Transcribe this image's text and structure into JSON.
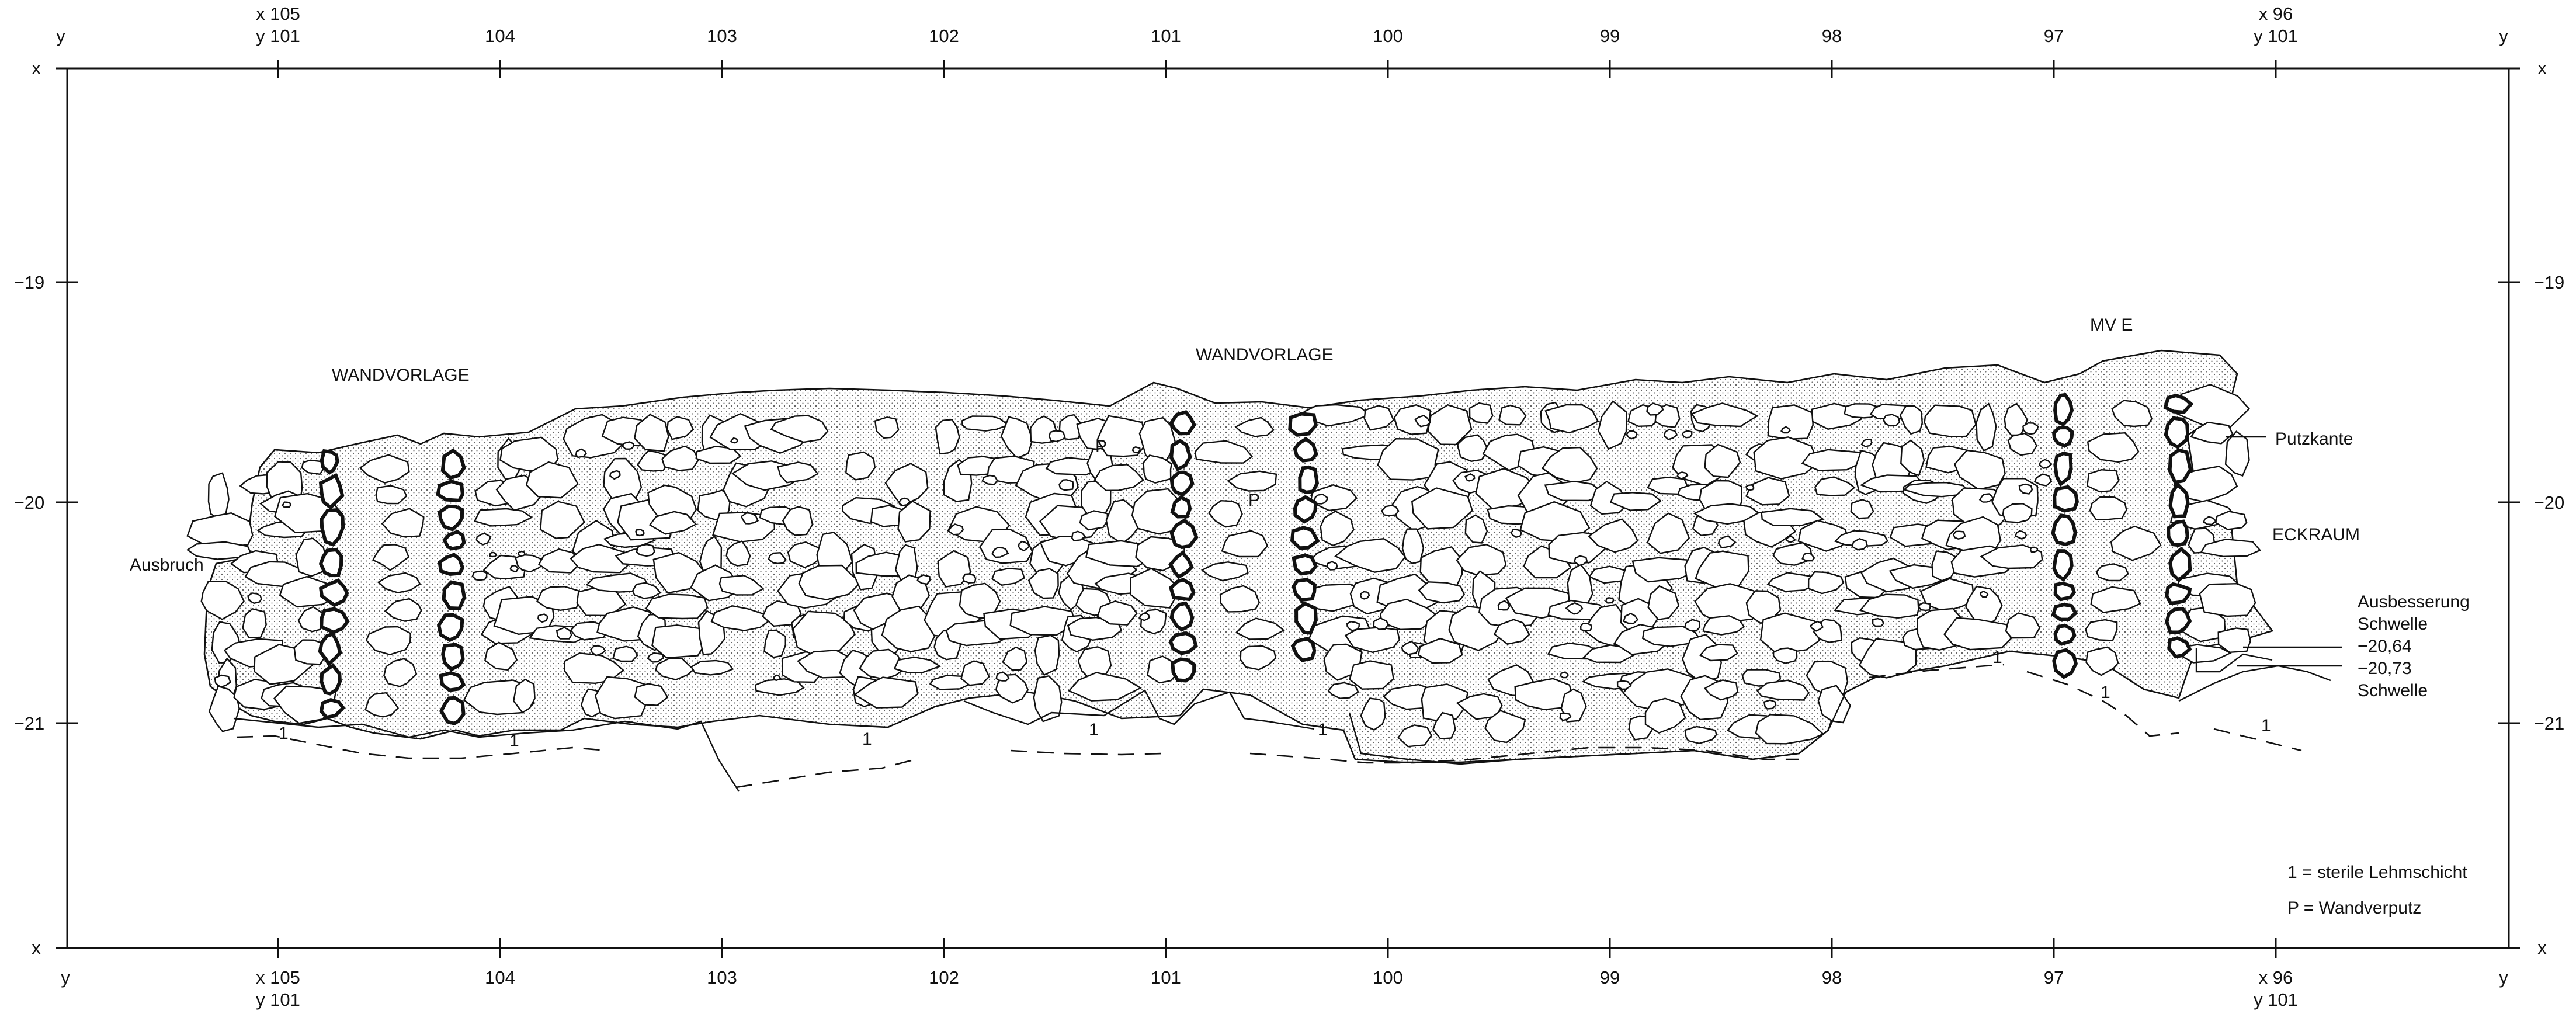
{
  "corner_labels": {
    "x": "x",
    "y": "y"
  },
  "top_ticks": [
    {
      "line1": "x 105",
      "line2": "y 101"
    },
    {
      "line1": "",
      "line2": "104"
    },
    {
      "line1": "",
      "line2": "103"
    },
    {
      "line1": "",
      "line2": "102"
    },
    {
      "line1": "",
      "line2": "101"
    },
    {
      "line1": "",
      "line2": "100"
    },
    {
      "line1": "",
      "line2": "99"
    },
    {
      "line1": "",
      "line2": "98"
    },
    {
      "line1": "",
      "line2": "97"
    },
    {
      "line1": "x 96",
      "line2": "y 101"
    }
  ],
  "bottom_ticks": [
    {
      "line1": "x 105",
      "line2": "y 101"
    },
    {
      "line1": "104",
      "line2": ""
    },
    {
      "line1": "103",
      "line2": ""
    },
    {
      "line1": "102",
      "line2": ""
    },
    {
      "line1": "101",
      "line2": ""
    },
    {
      "line1": "100",
      "line2": ""
    },
    {
      "line1": "99",
      "line2": ""
    },
    {
      "line1": "98",
      "line2": ""
    },
    {
      "line1": "97",
      "line2": ""
    },
    {
      "line1": "x 96",
      "line2": "y 101"
    }
  ],
  "side_ticks": [
    "−19",
    "−20",
    "−21"
  ],
  "labels": {
    "wandvorlage_left": "WANDVORLAGE",
    "wandvorlage_center": "WANDVORLAGE",
    "mv_e": "MV E",
    "ausbruch": "Ausbruch",
    "putzkante": "Putzkante",
    "eckraum": "ECKRAUM",
    "ausbesserung": "Ausbesserung",
    "schwelle_1": "Schwelle",
    "level_1": "−20,64",
    "level_2": "−20,73",
    "schwelle_2": "Schwelle",
    "p_marker": "P",
    "soil_marker": "1"
  },
  "legend": {
    "line1": "1 = sterile Lehmschicht",
    "line2": "P = Wandverputz"
  }
}
